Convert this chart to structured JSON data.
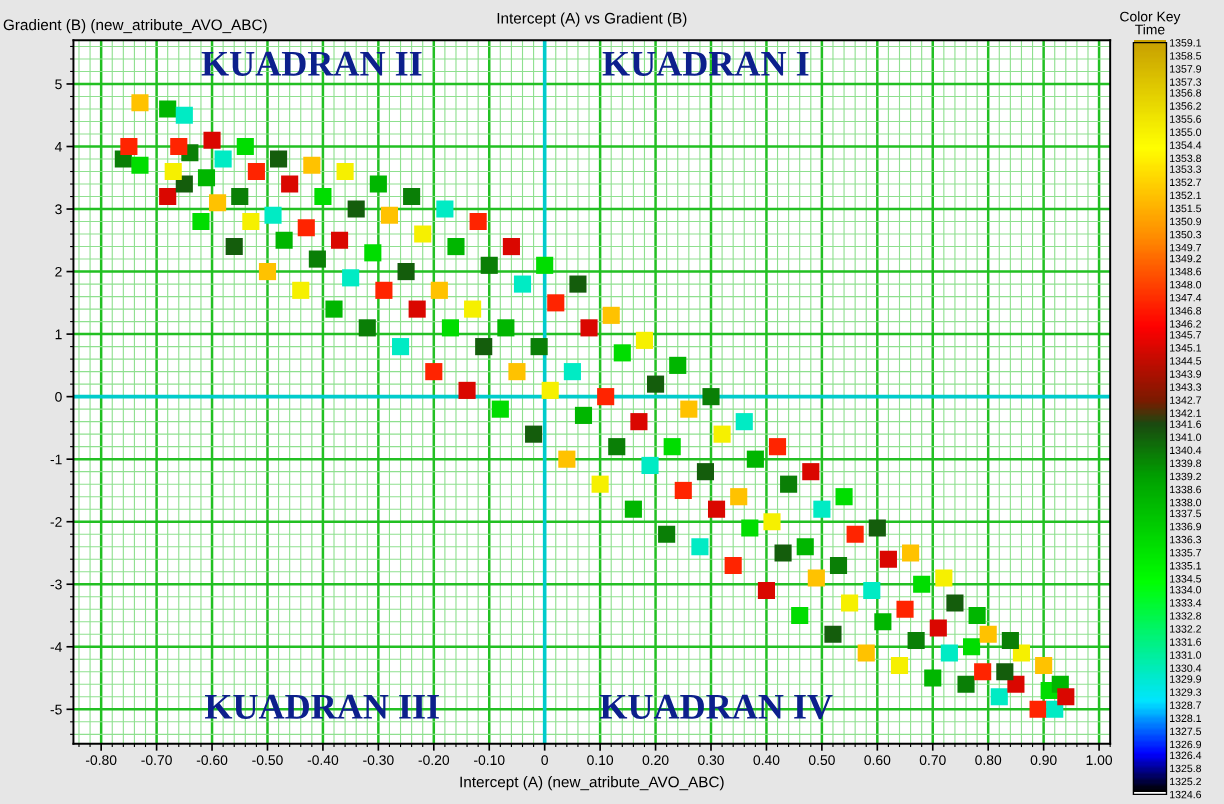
{
  "chart_data": {
    "type": "scatter",
    "title": "Intercept (A) vs Gradient (B)",
    "xlabel": "Intercept (A) (new_atribute_AVO_ABC)",
    "ylabel": "Gradient (B) (new_atribute_AVO_ABC)",
    "clabel": "Color Key\nTime",
    "annotations": [
      "KUADRAN II",
      "KUADRAN I",
      "KUADRAN III",
      "KUADRAN IV"
    ],
    "x": [
      -0.76,
      -0.75,
      -0.73,
      -0.73,
      -0.68,
      -0.65,
      -0.68,
      -0.65,
      -0.67,
      -0.64,
      -0.66,
      -0.62,
      -0.59,
      -0.61,
      -0.58,
      -0.6,
      -0.56,
      -0.53,
      -0.55,
      -0.52,
      -0.54,
      -0.5,
      -0.47,
      -0.49,
      -0.46,
      -0.48,
      -0.44,
      -0.41,
      -0.43,
      -0.4,
      -0.42,
      -0.38,
      -0.35,
      -0.37,
      -0.34,
      -0.36,
      -0.32,
      -0.29,
      -0.31,
      -0.28,
      -0.3,
      -0.26,
      -0.23,
      -0.25,
      -0.22,
      -0.24,
      -0.2,
      -0.17,
      -0.19,
      -0.16,
      -0.18,
      -0.14,
      -0.11,
      -0.13,
      -0.1,
      -0.12,
      -0.08,
      -0.05,
      -0.07,
      -0.04,
      -0.06,
      -0.02,
      0.01,
      -0.01,
      0.02,
      0.0,
      0.04,
      0.07,
      0.05,
      0.08,
      0.06,
      0.1,
      0.13,
      0.11,
      0.14,
      0.12,
      0.16,
      0.19,
      0.17,
      0.2,
      0.18,
      0.22,
      0.25,
      0.23,
      0.26,
      0.24,
      0.28,
      0.31,
      0.29,
      0.32,
      0.3,
      0.34,
      0.37,
      0.35,
      0.38,
      0.36,
      0.4,
      0.43,
      0.41,
      0.44,
      0.42,
      0.46,
      0.49,
      0.47,
      0.5,
      0.48,
      0.52,
      0.55,
      0.53,
      0.56,
      0.54,
      0.58,
      0.61,
      0.59,
      0.62,
      0.6,
      0.64,
      0.67,
      0.65,
      0.68,
      0.66,
      0.7,
      0.73,
      0.71,
      0.74,
      0.72,
      0.76,
      0.79,
      0.77,
      0.8,
      0.78,
      0.82,
      0.85,
      0.83,
      0.86,
      0.84,
      0.89,
      0.91,
      0.9,
      0.93,
      0.92,
      0.94
    ],
    "values": [
      3.8,
      4.0,
      3.7,
      4.7,
      4.6,
      4.5,
      3.2,
      3.4,
      3.6,
      3.9,
      4.0,
      2.8,
      3.1,
      3.5,
      3.8,
      4.1,
      2.4,
      2.8,
      3.2,
      3.6,
      4.0,
      2.0,
      2.5,
      2.9,
      3.4,
      3.8,
      1.7,
      2.2,
      2.7,
      3.2,
      3.7,
      1.4,
      1.9,
      2.5,
      3.0,
      3.6,
      1.1,
      1.7,
      2.3,
      2.9,
      3.4,
      0.8,
      1.4,
      2.0,
      2.6,
      3.2,
      0.4,
      1.1,
      1.7,
      2.4,
      3.0,
      0.1,
      0.8,
      1.4,
      2.1,
      2.8,
      -0.2,
      0.4,
      1.1,
      1.8,
      2.4,
      -0.6,
      0.1,
      0.8,
      1.5,
      2.1,
      -1.0,
      -0.3,
      0.4,
      1.1,
      1.8,
      -1.4,
      -0.8,
      0.0,
      0.7,
      1.3,
      -1.8,
      -1.1,
      -0.4,
      0.2,
      0.9,
      -2.2,
      -1.5,
      -0.8,
      -0.2,
      0.5,
      -2.4,
      -1.8,
      -1.2,
      -0.6,
      0.0,
      -2.7,
      -2.1,
      -1.6,
      -1.0,
      -0.4,
      -3.1,
      -2.5,
      -2.0,
      -1.4,
      -0.8,
      -3.5,
      -2.9,
      -2.4,
      -1.8,
      -1.2,
      -3.8,
      -3.3,
      -2.7,
      -2.2,
      -1.6,
      -4.1,
      -3.6,
      -3.1,
      -2.6,
      -2.1,
      -4.3,
      -3.9,
      -3.4,
      -3.0,
      -2.5,
      -4.5,
      -4.1,
      -3.7,
      -3.3,
      -2.9,
      -4.6,
      -4.4,
      -4.0,
      -3.8,
      -3.5,
      -4.8,
      -4.6,
      -4.4,
      -4.1,
      -3.9,
      -5.0,
      -4.7,
      -4.3,
      -4.6,
      -5.0,
      -4.8
    ],
    "cvalues": [
      1340,
      1347,
      1336,
      1352,
      1338,
      1330,
      1345,
      1341,
      1355,
      1340,
      1347,
      1336,
      1352,
      1338,
      1330,
      1345,
      1341,
      1355,
      1340,
      1347,
      1336,
      1352,
      1338,
      1330,
      1345,
      1341,
      1355,
      1340,
      1347,
      1336,
      1352,
      1338,
      1330,
      1345,
      1341,
      1355,
      1340,
      1347,
      1336,
      1352,
      1338,
      1330,
      1345,
      1341,
      1355,
      1340,
      1347,
      1336,
      1352,
      1338,
      1330,
      1345,
      1341,
      1355,
      1340,
      1347,
      1336,
      1352,
      1338,
      1330,
      1345,
      1341,
      1355,
      1340,
      1347,
      1336,
      1352,
      1338,
      1330,
      1345,
      1341,
      1355,
      1340,
      1347,
      1336,
      1352,
      1338,
      1330,
      1345,
      1341,
      1355,
      1340,
      1347,
      1336,
      1352,
      1338,
      1330,
      1345,
      1341,
      1355,
      1340,
      1347,
      1336,
      1352,
      1338,
      1330,
      1345,
      1341,
      1355,
      1340,
      1347,
      1336,
      1352,
      1338,
      1330,
      1345,
      1341,
      1355,
      1340,
      1347,
      1336,
      1352,
      1338,
      1330,
      1345,
      1341,
      1355,
      1340,
      1347,
      1336,
      1352,
      1338,
      1330,
      1345,
      1341,
      1355,
      1340,
      1347,
      1336,
      1352,
      1338,
      1330,
      1345,
      1341,
      1355,
      1340,
      1347,
      1336,
      1352,
      1338,
      1330,
      1345
    ],
    "xlim": [
      -0.85,
      1.02
    ],
    "ylim": [
      -5.55,
      5.7
    ],
    "xticks": [
      {
        "value": -0.84,
        "label": null
      },
      {
        "value": -0.82,
        "label": null
      },
      {
        "value": -0.8,
        "label": "-0.80"
      },
      {
        "value": -0.78,
        "label": null
      },
      {
        "value": -0.76,
        "label": null
      },
      {
        "value": -0.74,
        "label": null
      },
      {
        "value": -0.72,
        "label": null
      },
      {
        "value": -0.7,
        "label": "-0.70"
      },
      {
        "value": -0.68,
        "label": null
      },
      {
        "value": -0.66,
        "label": null
      },
      {
        "value": -0.64,
        "label": null
      },
      {
        "value": -0.62,
        "label": null
      },
      {
        "value": -0.6,
        "label": "-0.60"
      },
      {
        "value": -0.58,
        "label": null
      },
      {
        "value": -0.56,
        "label": null
      },
      {
        "value": -0.54,
        "label": null
      },
      {
        "value": -0.52,
        "label": null
      },
      {
        "value": -0.5,
        "label": "-0.50"
      },
      {
        "value": -0.48,
        "label": null
      },
      {
        "value": -0.46,
        "label": null
      },
      {
        "value": -0.44,
        "label": null
      },
      {
        "value": -0.42,
        "label": null
      },
      {
        "value": -0.4,
        "label": "-0.40"
      },
      {
        "value": -0.38,
        "label": null
      },
      {
        "value": -0.36,
        "label": null
      },
      {
        "value": -0.34,
        "label": null
      },
      {
        "value": -0.32,
        "label": null
      },
      {
        "value": -0.3,
        "label": "-0.30"
      },
      {
        "value": -0.28,
        "label": null
      },
      {
        "value": -0.26,
        "label": null
      },
      {
        "value": -0.24,
        "label": null
      },
      {
        "value": -0.22,
        "label": null
      },
      {
        "value": -0.2,
        "label": "-0.20"
      },
      {
        "value": -0.18,
        "label": null
      },
      {
        "value": -0.16,
        "label": null
      },
      {
        "value": -0.14,
        "label": null
      },
      {
        "value": -0.12,
        "label": null
      },
      {
        "value": -0.1,
        "label": "-0.10"
      },
      {
        "value": -0.08,
        "label": null
      },
      {
        "value": -0.06,
        "label": null
      },
      {
        "value": -0.04,
        "label": null
      },
      {
        "value": -0.02,
        "label": null
      },
      0,
      {
        "value": 0.02,
        "label": null
      },
      {
        "value": 0.04,
        "label": null
      },
      {
        "value": 0.06,
        "label": null
      },
      {
        "value": 0.08,
        "label": null
      },
      {
        "value": 0.1,
        "label": "0.10"
      },
      {
        "value": 0.12,
        "label": null
      },
      {
        "value": 0.14,
        "label": null
      },
      {
        "value": 0.16,
        "label": null
      },
      {
        "value": 0.18,
        "label": null
      },
      {
        "value": 0.2,
        "label": "0.20"
      },
      {
        "value": 0.22,
        "label": null
      },
      {
        "value": 0.24,
        "label": null
      },
      {
        "value": 0.26,
        "label": null
      },
      {
        "value": 0.28,
        "label": null
      },
      {
        "value": 0.3,
        "label": "0.30"
      },
      {
        "value": 0.32,
        "label": null
      },
      {
        "value": 0.34,
        "label": null
      },
      {
        "value": 0.36,
        "label": null
      },
      {
        "value": 0.38,
        "label": null
      },
      {
        "value": 0.4,
        "label": "0.40"
      },
      {
        "value": 0.42,
        "label": null
      },
      {
        "value": 0.44,
        "label": null
      },
      {
        "value": 0.46,
        "label": null
      },
      {
        "value": 0.48,
        "label": null
      },
      {
        "value": 0.5,
        "label": "0.50"
      },
      {
        "value": 0.52,
        "label": null
      },
      {
        "value": 0.54,
        "label": null
      },
      {
        "value": 0.56,
        "label": null
      },
      {
        "value": 0.58,
        "label": null
      },
      {
        "value": 0.6,
        "label": "0.60"
      },
      {
        "value": 0.62,
        "label": null
      },
      {
        "value": 0.64,
        "label": null
      },
      {
        "value": 0.66,
        "label": null
      },
      {
        "value": 0.68,
        "label": null
      },
      {
        "value": 0.7,
        "label": "0.70"
      },
      {
        "value": 0.72,
        "label": null
      },
      {
        "value": 0.74,
        "label": null
      },
      {
        "value": 0.76,
        "label": null
      },
      {
        "value": 0.78,
        "label": null
      },
      {
        "value": 0.8,
        "label": "0.80"
      },
      {
        "value": 0.82,
        "label": null
      },
      {
        "value": 0.84,
        "label": null
      },
      {
        "value": 0.86,
        "label": null
      },
      {
        "value": 0.88,
        "label": null
      },
      {
        "value": 0.9,
        "label": "0.90"
      },
      {
        "value": 0.92,
        "label": null
      },
      {
        "value": 0.94,
        "label": null
      },
      {
        "value": 0.96,
        "label": null
      },
      {
        "value": 0.98,
        "label": null
      },
      {
        "value": 1.0,
        "label": "1.00"
      },
      {
        "value": 1.02,
        "label": null
      }
    ],
    "yticks": [
      {
        "value": -5.4,
        "label": null
      },
      {
        "value": -5.2,
        "label": null
      },
      -5,
      {
        "value": -4.8,
        "label": null
      },
      {
        "value": -4.6,
        "label": null
      },
      {
        "value": -4.4,
        "label": null
      },
      {
        "value": -4.2,
        "label": null
      },
      -4,
      {
        "value": -3.8,
        "label": null
      },
      {
        "value": -3.6,
        "label": null
      },
      {
        "value": -3.4,
        "label": null
      },
      {
        "value": -3.2,
        "label": null
      },
      -3,
      {
        "value": -2.8,
        "label": null
      },
      {
        "value": -2.6,
        "label": null
      },
      {
        "value": -2.4,
        "label": null
      },
      {
        "value": -2.2,
        "label": null
      },
      -2,
      {
        "value": -1.8,
        "label": null
      },
      {
        "value": -1.6,
        "label": null
      },
      {
        "value": -1.4,
        "label": null
      },
      {
        "value": -1.2,
        "label": null
      },
      -1,
      {
        "value": -0.8,
        "label": null
      },
      {
        "value": -0.6,
        "label": null
      },
      {
        "value": -0.4,
        "label": null
      },
      {
        "value": -0.2,
        "label": null
      },
      0,
      {
        "value": 0.2,
        "label": null
      },
      {
        "value": 0.4,
        "label": null
      },
      {
        "value": 0.6,
        "label": null
      },
      {
        "value": 0.8,
        "label": null
      },
      1,
      {
        "value": 1.2,
        "label": null
      },
      {
        "value": 1.4,
        "label": null
      },
      {
        "value": 1.6,
        "label": null
      },
      {
        "value": 1.8,
        "label": null
      },
      2,
      {
        "value": 2.2,
        "label": null
      },
      {
        "value": 2.4,
        "label": null
      },
      {
        "value": 2.6,
        "label": null
      },
      {
        "value": 2.8,
        "label": null
      },
      3,
      {
        "value": 3.2,
        "label": null
      },
      {
        "value": 3.4,
        "label": null
      },
      {
        "value": 3.6,
        "label": null
      },
      {
        "value": 3.8,
        "label": null
      },
      4,
      {
        "value": 4.2,
        "label": null
      },
      {
        "value": 4.4,
        "label": null
      },
      {
        "value": 4.6,
        "label": null
      },
      {
        "value": 4.8,
        "label": null
      },
      5,
      {
        "value": 5.2,
        "label": null
      },
      {
        "value": 5.4,
        "label": null
      },
      {
        "value": 5.6,
        "label": null
      }
    ],
    "clim": [
      1324.6,
      1359.1
    ],
    "cticks": [
      1359.1,
      1358.5,
      1357.9,
      1357.3,
      1356.8,
      1356.2,
      1355.6,
      {
        "value": 1355.0,
        "label": "1355.0"
      },
      1354.4,
      1353.8,
      1353.3,
      1352.7,
      1352.1,
      1351.5,
      1350.9,
      1350.3,
      1349.7,
      1349.2,
      1348.6,
      {
        "value": 1348.0,
        "label": "1348.0"
      },
      1347.4,
      1346.8,
      1346.2,
      1345.7,
      1345.1,
      1344.5,
      1343.9,
      1343.3,
      1342.7,
      1342.1,
      1341.6,
      {
        "value": 1341.0,
        "label": "1341.0"
      },
      1340.4,
      1339.8,
      1339.2,
      1338.6,
      {
        "value": 1338.0,
        "label": "1338.0"
      },
      1337.5,
      1336.9,
      1336.3,
      1335.7,
      1335.1,
      1334.5,
      {
        "value": 1334.0,
        "label": "1334.0"
      },
      1333.4,
      1332.8,
      1332.2,
      1331.6,
      {
        "value": 1331.0,
        "label": "1331.0"
      },
      1330.4,
      1329.9,
      1329.3,
      1328.7,
      1328.1,
      1327.5,
      1326.9,
      1326.4,
      1325.8,
      1325.2,
      1324.6
    ],
    "grid": true,
    "marker": "square"
  }
}
